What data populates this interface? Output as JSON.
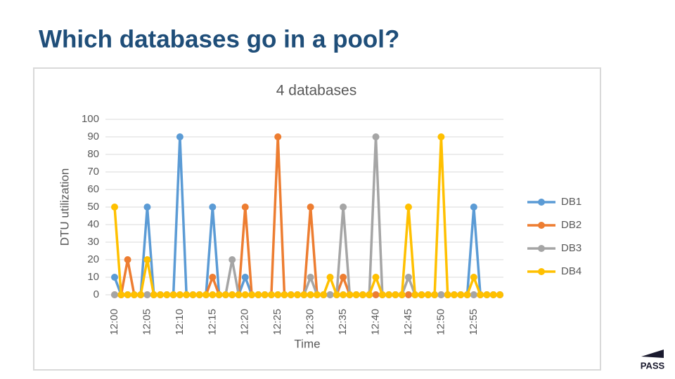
{
  "slide_title": "Which databases go in a pool?",
  "logo": "PASS",
  "chart_data": {
    "type": "line",
    "title": "4 databases",
    "x_label": "Time",
    "y_label": "DTU utilization",
    "categories": [
      "12:00",
      null,
      null,
      null,
      null,
      "12:05",
      null,
      null,
      null,
      null,
      "12:10",
      null,
      null,
      null,
      null,
      "12:15",
      null,
      null,
      null,
      null,
      "12:20",
      null,
      null,
      null,
      null,
      "12:25",
      null,
      null,
      null,
      null,
      "12:30",
      null,
      null,
      null,
      null,
      "12:35",
      null,
      null,
      null,
      null,
      "12:40",
      null,
      null,
      null,
      null,
      "12:45",
      null,
      null,
      null,
      null,
      "12:50",
      null,
      null,
      null,
      null,
      "12:55",
      null,
      null,
      null,
      null
    ],
    "series": [
      {
        "name": "DB1",
        "color": "#5b9bd5",
        "values": [
          10,
          0,
          0,
          0,
          0,
          50,
          0,
          0,
          0,
          0,
          90,
          0,
          0,
          0,
          0,
          50,
          0,
          0,
          0,
          0,
          10,
          0,
          0,
          0,
          0,
          0,
          0,
          0,
          0,
          0,
          0,
          0,
          0,
          0,
          0,
          0,
          0,
          0,
          0,
          0,
          0,
          0,
          0,
          0,
          0,
          0,
          0,
          0,
          0,
          0,
          0,
          0,
          0,
          0,
          0,
          50,
          0,
          0,
          0,
          0
        ]
      },
      {
        "name": "DB2",
        "color": "#ed7d31",
        "values": [
          0,
          0,
          20,
          0,
          0,
          0,
          0,
          0,
          0,
          0,
          0,
          0,
          0,
          0,
          0,
          10,
          0,
          0,
          0,
          0,
          50,
          0,
          0,
          0,
          0,
          90,
          0,
          0,
          0,
          0,
          50,
          0,
          0,
          0,
          0,
          10,
          0,
          0,
          0,
          0,
          0,
          0,
          0,
          0,
          0,
          0,
          0,
          0,
          0,
          0,
          0,
          0,
          0,
          0,
          0,
          0,
          0,
          0,
          0,
          0
        ]
      },
      {
        "name": "DB3",
        "color": "#a5a5a5",
        "values": [
          0,
          0,
          0,
          0,
          0,
          0,
          0,
          0,
          0,
          0,
          0,
          0,
          0,
          0,
          0,
          0,
          0,
          0,
          20,
          0,
          0,
          0,
          0,
          0,
          0,
          0,
          0,
          0,
          0,
          0,
          10,
          0,
          0,
          0,
          0,
          50,
          0,
          0,
          0,
          0,
          90,
          0,
          0,
          0,
          0,
          10,
          0,
          0,
          0,
          0,
          0,
          0,
          0,
          0,
          0,
          0,
          0,
          0,
          0,
          0
        ]
      },
      {
        "name": "DB4",
        "color": "#ffc000",
        "values": [
          50,
          0,
          0,
          0,
          0,
          20,
          0,
          0,
          0,
          0,
          0,
          0,
          0,
          0,
          0,
          0,
          0,
          0,
          0,
          0,
          0,
          0,
          0,
          0,
          0,
          0,
          0,
          0,
          0,
          0,
          0,
          0,
          0,
          10,
          0,
          0,
          0,
          0,
          0,
          0,
          10,
          0,
          0,
          0,
          0,
          50,
          0,
          0,
          0,
          0,
          90,
          0,
          0,
          0,
          0,
          10,
          0,
          0,
          0,
          0
        ]
      }
    ],
    "ylim": [
      0,
      100
    ],
    "yticks": [
      0,
      10,
      20,
      30,
      40,
      50,
      60,
      70,
      80,
      90,
      100
    ],
    "grid": true,
    "legend": "right"
  }
}
